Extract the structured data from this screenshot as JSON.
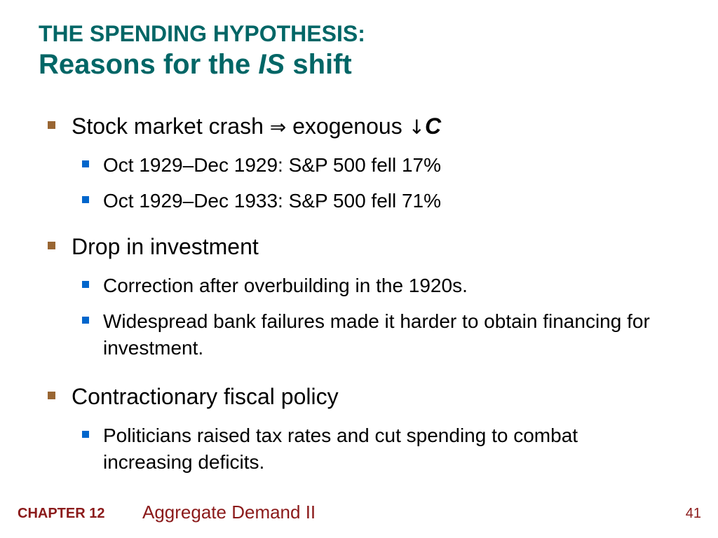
{
  "title": {
    "line1": "THE SPENDING HYPOTHESIS:",
    "line2_prefix": "Reasons for the ",
    "line2_italic": "IS",
    "line2_suffix": " shift"
  },
  "bullets": [
    {
      "text_prefix": "Stock market crash ",
      "arrow1": "⇒",
      "text_middle": " exogenous ",
      "arrow2": "↓",
      "var": "C",
      "sub": [
        "Oct 1929–Dec 1929:  S&P 500 fell 17%",
        "Oct 1929–Dec 1933:  S&P 500 fell 71%"
      ]
    },
    {
      "text": "Drop in investment",
      "sub": [
        "Correction after overbuilding in the 1920s.",
        "Widespread bank failures made it harder to obtain financing for investment."
      ]
    },
    {
      "text": "Contractionary fiscal policy",
      "sub": [
        "Politicians raised tax rates and cut spending to combat increasing deficits."
      ]
    }
  ],
  "footer": {
    "chapter": "CHAPTER 12",
    "topic": "Aggregate Demand II",
    "page": "41"
  },
  "colors": {
    "title": "#006666",
    "bullet_l1": "#996633",
    "bullet_l2": "#0066cc",
    "footer": "#8b1a1a"
  }
}
